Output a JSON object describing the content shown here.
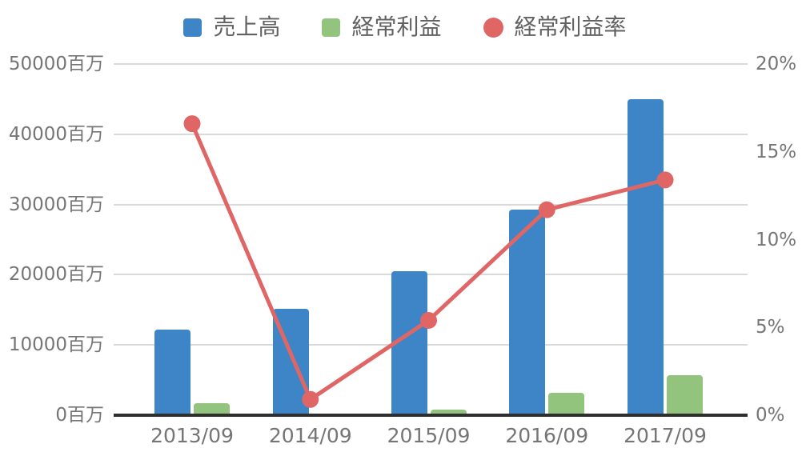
{
  "legend": {
    "items": [
      {
        "label": "売上高",
        "marker": "square",
        "color": "#3d85c6"
      },
      {
        "label": "経常利益",
        "marker": "square",
        "color": "#93c47d"
      },
      {
        "label": "経常利益率",
        "marker": "circle",
        "color": "#e06666"
      }
    ]
  },
  "chart_data": {
    "type": "bar",
    "subtype": "combo-bar-line-dual-axis",
    "categories": [
      "2013/09",
      "2014/09",
      "2015/09",
      "2016/09",
      "2017/09"
    ],
    "series": [
      {
        "name": "売上高",
        "type": "bar",
        "axis": "left",
        "color": "#3d85c6",
        "values": [
          12200,
          15100,
          20500,
          29300,
          45000
        ]
      },
      {
        "name": "経常利益",
        "type": "bar",
        "axis": "left",
        "color": "#93c47d",
        "values": [
          1700,
          150,
          750,
          3150,
          5750
        ]
      },
      {
        "name": "経常利益率",
        "type": "line",
        "axis": "right",
        "color": "#e06666",
        "values": [
          16.6,
          0.9,
          5.4,
          11.7,
          13.4
        ]
      }
    ],
    "left_axis": {
      "unit": "百万",
      "range": [
        0,
        50000
      ],
      "ticks": [
        0,
        10000,
        20000,
        30000,
        40000,
        50000
      ],
      "tick_labels": [
        "0百万",
        "10000百万",
        "20000百万",
        "30000百万",
        "40000百万",
        "50000百万"
      ]
    },
    "right_axis": {
      "unit": "%",
      "range": [
        0,
        20
      ],
      "ticks": [
        0,
        5,
        10,
        15,
        20
      ],
      "tick_labels": [
        "0%",
        "5%",
        "10%",
        "15%",
        "20%"
      ]
    },
    "title": "",
    "grid": "horizontal",
    "legend_position": "top",
    "colors": {
      "gridline": "#d9d9d9",
      "axis_line": "#2e2e2e",
      "tick_text": "#757575",
      "legend_text": "#616161"
    }
  }
}
